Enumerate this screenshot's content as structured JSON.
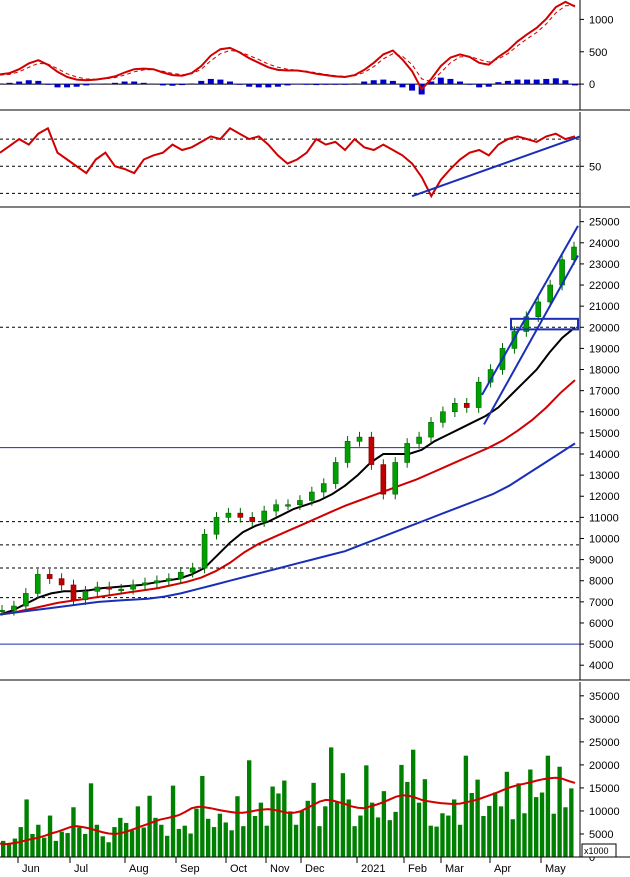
{
  "chart_data": [
    {
      "panel": "macd",
      "type": "line",
      "y_ticks": [
        "1000",
        "500",
        "0"
      ],
      "ylim": [
        -400,
        1300
      ],
      "grid": false,
      "series": [
        {
          "role": "macd_line",
          "color": "#d00000",
          "values": [
            150,
            170,
            230,
            320,
            370,
            300,
            190,
            110,
            70,
            60,
            70,
            90,
            120,
            180,
            230,
            240,
            230,
            180,
            140,
            130,
            170,
            280,
            440,
            540,
            560,
            490,
            400,
            330,
            260,
            220,
            210,
            210,
            190,
            160,
            140,
            120,
            110,
            140,
            220,
            330,
            460,
            520,
            380,
            200,
            -80,
            80,
            280,
            410,
            460,
            420,
            330,
            300,
            420,
            520,
            660,
            770,
            870,
            1010,
            1190,
            1270,
            1200
          ]
        },
        {
          "role": "signal_line",
          "color": "#d00000",
          "dashed": true,
          "values": [
            140,
            150,
            190,
            260,
            320,
            310,
            240,
            160,
            110,
            80,
            75,
            82,
            100,
            140,
            190,
            220,
            225,
            200,
            165,
            145,
            160,
            230,
            360,
            470,
            520,
            500,
            440,
            380,
            310,
            260,
            230,
            215,
            200,
            175,
            150,
            130,
            120,
            130,
            180,
            270,
            390,
            470,
            430,
            300,
            80,
            40,
            180,
            330,
            420,
            430,
            380,
            340,
            390,
            470,
            590,
            700,
            800,
            930,
            1100,
            1210,
            1220
          ]
        },
        {
          "role": "histogram",
          "color": "#0000cc",
          "values": [
            10,
            20,
            40,
            60,
            50,
            -10,
            -50,
            -50,
            -40,
            -20,
            -5,
            8,
            20,
            40,
            40,
            20,
            5,
            -20,
            -25,
            -15,
            10,
            50,
            80,
            70,
            40,
            -10,
            -40,
            -50,
            -50,
            -40,
            -20,
            -5,
            -10,
            -15,
            -10,
            -10,
            -10,
            10,
            40,
            60,
            70,
            50,
            -50,
            -100,
            -160,
            40,
            100,
            80,
            40,
            -10,
            -50,
            -40,
            30,
            50,
            70,
            70,
            70,
            80,
            90,
            60,
            -20
          ]
        }
      ]
    },
    {
      "panel": "rsi",
      "type": "line",
      "y_ticks": [
        "50"
      ],
      "ylim": [
        20,
        90
      ],
      "reference_levels": [
        30,
        50,
        70
      ],
      "grid": false,
      "series": [
        {
          "role": "rsi",
          "color": "#d00000",
          "values": [
            60,
            65,
            70,
            66,
            74,
            78,
            60,
            55,
            50,
            45,
            55,
            60,
            50,
            48,
            45,
            55,
            58,
            60,
            66,
            62,
            64,
            68,
            72,
            70,
            78,
            74,
            70,
            72,
            66,
            58,
            52,
            55,
            60,
            70,
            66,
            68,
            62,
            70,
            64,
            62,
            66,
            62,
            58,
            52,
            42,
            28,
            40,
            48,
            55,
            60,
            62,
            58,
            66,
            70,
            72,
            70,
            68,
            72,
            74,
            70,
            72
          ]
        },
        {
          "role": "trendline",
          "color": "#1a2fb8",
          "points": [
            {
              "i": 43,
              "y": 28
            },
            {
              "i": 60,
              "y": 72
            }
          ]
        }
      ]
    },
    {
      "panel": "price",
      "type": "candlestick",
      "x_tick_labels": [
        "Jun",
        "Jul",
        "Aug",
        "Sep",
        "Oct",
        "Nov",
        "Dec",
        "2021",
        "Feb",
        "Mar",
        "Apr",
        "May"
      ],
      "y_ticks": [
        4000,
        5000,
        6000,
        7000,
        8000,
        9000,
        10000,
        11000,
        12000,
        13000,
        14000,
        15000,
        16000,
        17000,
        18000,
        19000,
        20000,
        21000,
        22000,
        23000,
        24000,
        25000
      ],
      "ylim": [
        3300,
        25600
      ],
      "grid": false,
      "close": [
        6600,
        6800,
        7400,
        8300,
        8100,
        7800,
        7100,
        7500,
        7700,
        7600,
        7600,
        7800,
        7900,
        8000,
        8100,
        8400,
        8600,
        10200,
        11000,
        11200,
        11000,
        10800,
        11300,
        11600,
        11600,
        11800,
        12200,
        12600,
        13600,
        14600,
        14800,
        13500,
        12100,
        13600,
        14500,
        14800,
        15500,
        16000,
        16400,
        16200,
        17400,
        18000,
        19000,
        19800,
        20500,
        21200,
        22000,
        23200,
        23800
      ],
      "moving_averages": [
        {
          "role": "ma_short",
          "color": "#000000",
          "values": [
            6400,
            6600,
            6900,
            7200,
            7400,
            7500,
            7500,
            7550,
            7650,
            7700,
            7750,
            7800,
            7900,
            8000,
            8100,
            8300,
            8600,
            9200,
            9800,
            10300,
            10600,
            10800,
            11100,
            11400,
            11600,
            11800,
            12100,
            12500,
            13000,
            13600,
            14000,
            14000,
            14000,
            14200,
            14600,
            14900,
            15200,
            15500,
            15800,
            16200,
            16800,
            17400,
            18000,
            18800,
            19500,
            20000
          ]
        },
        {
          "role": "ma_mid",
          "color": "#d00000",
          "values": [
            6400,
            6500,
            6650,
            6800,
            6950,
            7050,
            7150,
            7250,
            7350,
            7450,
            7550,
            7650,
            7800,
            7950,
            8150,
            8450,
            8850,
            9350,
            9750,
            10050,
            10350,
            10650,
            10950,
            11250,
            11550,
            11800,
            12050,
            12300,
            12550,
            12800,
            13100,
            13400,
            13700,
            14000,
            14300,
            14650,
            15100,
            15600,
            16200,
            16900,
            17500
          ]
        },
        {
          "role": "ma_long",
          "color": "#1a2fb8",
          "values": [
            6400,
            6500,
            6600,
            6700,
            6800,
            6900,
            7000,
            7050,
            7100,
            7150,
            7250,
            7400,
            7600,
            7800,
            8000,
            8200,
            8400,
            8600,
            8800,
            9000,
            9200,
            9400,
            9700,
            10000,
            10300,
            10600,
            10900,
            11200,
            11500,
            11800,
            12100,
            12500,
            13000,
            13500,
            14000,
            14500
          ]
        }
      ],
      "horizontal_levels": [
        {
          "value": 14300,
          "style": "solid"
        },
        {
          "value": 5000,
          "style": "solid"
        },
        {
          "value": 20000,
          "style": "dashed"
        },
        {
          "value": 10800,
          "style": "dashed"
        },
        {
          "value": 9700,
          "style": "dashed"
        },
        {
          "value": 8600,
          "style": "dashed"
        },
        {
          "value": 7200,
          "style": "dashed"
        }
      ],
      "channel": {
        "upper": [
          16800,
          24800
        ],
        "lower": [
          15400,
          23400
        ]
      },
      "breakout_box": {
        "low": 19900,
        "high": 20400
      }
    },
    {
      "panel": "volume",
      "type": "bar",
      "unit_label": "x1000",
      "y_ticks": [
        "35000",
        "30000",
        "25000",
        "20000",
        "15000",
        "10000",
        "5000",
        "0"
      ],
      "ylim": [
        0,
        38000
      ],
      "grid": false,
      "bar_color": "#008000",
      "values": [
        3500,
        2800,
        4000,
        6500,
        12500,
        5000,
        7000,
        4200,
        9000,
        3500,
        5500,
        5200,
        10800,
        6400,
        5000,
        16000,
        7000,
        4500,
        3200,
        6500,
        8500,
        7400,
        5800,
        11000,
        6400,
        13300,
        8500,
        7000,
        4600,
        15500,
        6100,
        6800,
        5100,
        10500,
        17600,
        8300,
        6500,
        9400,
        7500,
        5800,
        13200,
        6700,
        21000,
        8900,
        11800,
        6800,
        15300,
        13800,
        16600,
        9900,
        7000,
        10000,
        12200,
        16100,
        6700,
        11000,
        23800,
        12000,
        18200,
        12500,
        6700,
        9000,
        19900,
        11800,
        8600,
        14300,
        8000,
        9800,
        20000,
        16300,
        23300,
        11800,
        16900,
        6800,
        6600,
        9500,
        9000,
        12500,
        7000,
        22000,
        13900,
        16800,
        8900,
        11100,
        14000,
        11000,
        18500,
        8200,
        16000,
        9500,
        19000,
        13000,
        14000,
        22000,
        9400,
        19600,
        10800,
        14900
      ],
      "moving_average": {
        "color": "#d00000",
        "values": [
          2900,
          2800,
          3000,
          3200,
          3600,
          3900,
          4200,
          4600,
          5100,
          5500,
          6000,
          6500,
          6700,
          6500,
          6200,
          5800,
          5400,
          5100,
          5000,
          5200,
          5600,
          6100,
          6600,
          7100,
          7600,
          8100,
          8400,
          8700,
          9100,
          9800,
          10600,
          10900,
          10800,
          10600,
          10300,
          10000,
          9800,
          9600,
          9600,
          9800,
          10100,
          10300,
          10400,
          10200,
          9900,
          9600,
          9600,
          9900,
          10600,
          11300,
          12000,
          12400,
          12300,
          11900,
          11500,
          11000,
          10700,
          10600,
          11000,
          11400,
          11900,
          12500,
          13100,
          13400,
          13300,
          12900,
          12400,
          12100,
          11900,
          11700,
          11600,
          11500,
          11600,
          11900,
          12200,
          12600,
          13100,
          13600,
          14100,
          14700,
          15200,
          15600,
          15900,
          16200,
          16600,
          16900,
          17100,
          17200,
          17000,
          16500,
          16100
        ]
      }
    }
  ]
}
